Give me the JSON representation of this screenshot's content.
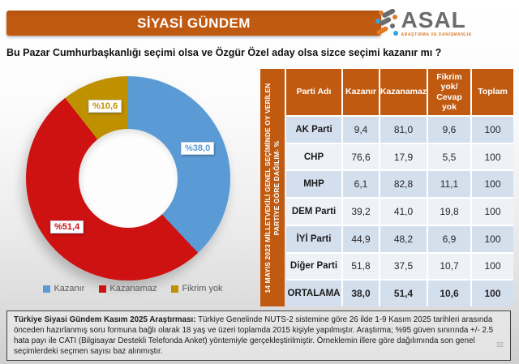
{
  "header": {
    "title": "SİYASİ GÜNDEM"
  },
  "logo": {
    "name": "ASAL",
    "tagline": "ARAŞTIRMA VE DANIŞMANLIK"
  },
  "question": "Bu Pazar Cumhurbaşkanlığı  seçimi olsa ve Özgür Özel aday olsa sizce seçimi kazanır mı ?",
  "chart_data": {
    "type": "pie",
    "donut": true,
    "start_angle_deg": 0,
    "direction": "clockwise",
    "legend_position": "bottom",
    "slices": [
      {
        "name": "Kazanır",
        "value": 38.0,
        "label": "%38,0",
        "color": "#5b9bd5"
      },
      {
        "name": "Kazanamaz",
        "value": 51.4,
        "label": "%51,4",
        "color": "#ce1111"
      },
      {
        "name": "Fikrim yok",
        "value": 10.6,
        "label": "%10,6",
        "color": "#bf9000"
      }
    ]
  },
  "table": {
    "sidebar_label": "14 MAYIS 2023 MİLLETVEKİLİ GENEL SEÇİMİNDE OY VERİLEN PARTİYE GÖRE DAĞILIM- %",
    "columns": [
      "Parti Adı",
      "Kazanır",
      "Kazanamaz",
      "Fikrim yok/ Cevap yok",
      "Toplam"
    ],
    "rows": [
      {
        "cells": [
          "AK Parti",
          "9,4",
          "81,0",
          "9,6",
          "100"
        ],
        "emphasis": false
      },
      {
        "cells": [
          "CHP",
          "76,6",
          "17,9",
          "5,5",
          "100"
        ],
        "emphasis": false
      },
      {
        "cells": [
          "MHP",
          "6,1",
          "82,8",
          "11,1",
          "100"
        ],
        "emphasis": false
      },
      {
        "cells": [
          "DEM Parti",
          "39,2",
          "41,0",
          "19,8",
          "100"
        ],
        "emphasis": false
      },
      {
        "cells": [
          "İYİ Parti",
          "44,9",
          "48,2",
          "6,9",
          "100"
        ],
        "emphasis": false
      },
      {
        "cells": [
          "Diğer Parti",
          "51,8",
          "37,5",
          "10,7",
          "100"
        ],
        "emphasis": false
      },
      {
        "cells": [
          "ORTALAMA",
          "38,0",
          "51,4",
          "10,6",
          "100"
        ],
        "emphasis": true
      }
    ]
  },
  "footer": {
    "bold": "Türkiye Siyasi Gündem Kasım 2025 Araştırması:",
    "text": " Türkiye Genelinde NUTS-2 sistemine göre 26 ilde 1-9 Kasım 2025 tarihleri arasında önceden hazırlanmış soru formuna bağlı olarak 18 yaş ve üzeri toplamda 2015 kişiyle yapılmıştır. Araştırma; %95 güven sınırında +/- 2.5 hata payı ile CATI (Bilgisayar Destekli Telefonda Anket) yöntemiyle gerçekleştirilmiştir. Örneklemin illere göre dağılımında son genel seçimlerdeki seçmen sayısı baz alınmıştır."
  },
  "page_number": "32",
  "colors": {
    "accent_orange": "#c05a11",
    "row_blue": "#d4dfee",
    "row_light": "#eef2f8",
    "logo_gray": "#6b6c6e",
    "logo_orange": "#e07b26",
    "logo_blue": "#2ba8df"
  }
}
